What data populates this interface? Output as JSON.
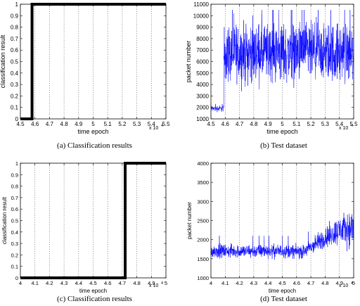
{
  "chart_data": [
    {
      "id": "a",
      "type": "line",
      "caption": "(a) Classification results",
      "xlabel": "time epoch",
      "ylabel": "classification result",
      "exponent_label": "x 10",
      "exponent_power": "4",
      "xlim": [
        4.5,
        5.5
      ],
      "ylim": [
        0,
        1
      ],
      "xticks": [
        "4.5",
        "4.6",
        "4.7",
        "4.8",
        "4.9",
        "5",
        "5.1",
        "5.2",
        "5.3",
        "5.4",
        "5.5"
      ],
      "yticks": [
        "0",
        "0.1",
        "0.2",
        "0.3",
        "0.4",
        "0.5",
        "0.6",
        "0.7",
        "0.8",
        "0.9",
        "1"
      ],
      "grid": "vertical dotted",
      "series": [
        {
          "color": "#000000",
          "x": [
            4.5,
            4.58,
            4.58,
            5.5
          ],
          "y": [
            0,
            0,
            1,
            1
          ]
        }
      ]
    },
    {
      "id": "b",
      "type": "line",
      "caption": "(b) Test dataset",
      "xlabel": "time epoch",
      "ylabel": "packet number",
      "exponent_label": "x 10",
      "exponent_power": "4",
      "xlim": [
        4.5,
        5.5
      ],
      "ylim": [
        1000,
        11000
      ],
      "xticks": [
        "4.5",
        "4.6",
        "4.7",
        "4.8",
        "4.9",
        "5",
        "5.1",
        "5.2",
        "5.3",
        "5.4",
        "5.5"
      ],
      "yticks": [
        "1000",
        "2000",
        "3000",
        "4000",
        "5000",
        "6000",
        "7000",
        "8000",
        "9000",
        "10000",
        "11000"
      ],
      "grid": "vertical dotted",
      "series": [
        {
          "color": "#0000ff",
          "segments": [
            {
              "x_start": 4.5,
              "x_end": 4.59,
              "mean": 1900,
              "low": 1500,
              "high": 2300
            },
            {
              "x_start": 4.59,
              "x_end": 5.5,
              "mean": 6000,
              "low": 3000,
              "high": 10500
            }
          ]
        }
      ]
    },
    {
      "id": "c",
      "type": "line",
      "caption": "(c) Classification results",
      "xlabel": "time epoch",
      "ylabel": "classification result",
      "exponent_label": "x 10",
      "exponent_power": "4",
      "xlim": [
        4.0,
        5.0
      ],
      "ylim": [
        0,
        1
      ],
      "xticks": [
        "4",
        "4.1",
        "4.2",
        "4.3",
        "4.4",
        "4.5",
        "4.6",
        "4.7",
        "4.8",
        "4.9",
        "5"
      ],
      "yticks": [
        "0",
        "0.1",
        "0.2",
        "0.3",
        "0.4",
        "0.5",
        "0.6",
        "0.7",
        "0.8",
        "0.9",
        "1"
      ],
      "grid": "vertical dotted",
      "series": [
        {
          "color": "#000000",
          "x": [
            4.0,
            4.72,
            4.72,
            5.0
          ],
          "y": [
            0,
            0,
            1,
            1
          ]
        }
      ]
    },
    {
      "id": "d",
      "type": "line",
      "caption": "(d) Test dataset",
      "xlabel": "time epoch",
      "ylabel": "packet number",
      "exponent_label": "x 10",
      "exponent_power": "4",
      "xlim": [
        4.0,
        5.0
      ],
      "ylim": [
        1000,
        4000
      ],
      "xticks": [
        "4",
        "4.1",
        "4.2",
        "4.3",
        "4.4",
        "4.5",
        "4.6",
        "4.7",
        "4.8",
        "4.9",
        "5"
      ],
      "yticks": [
        "1000",
        "1500",
        "2000",
        "2500",
        "3000",
        "3500",
        "4000"
      ],
      "grid": "vertical dotted",
      "series": [
        {
          "color": "#0000ff",
          "trend": [
            {
              "x": 4.0,
              "mean": 1700,
              "spread": 250
            },
            {
              "x": 4.5,
              "mean": 1700,
              "spread": 250
            },
            {
              "x": 4.65,
              "mean": 1680,
              "spread": 250
            },
            {
              "x": 4.8,
              "mean": 2050,
              "spread": 400
            },
            {
              "x": 4.9,
              "mean": 2250,
              "spread": 550
            },
            {
              "x": 5.0,
              "mean": 2300,
              "spread": 700
            }
          ]
        }
      ]
    }
  ]
}
